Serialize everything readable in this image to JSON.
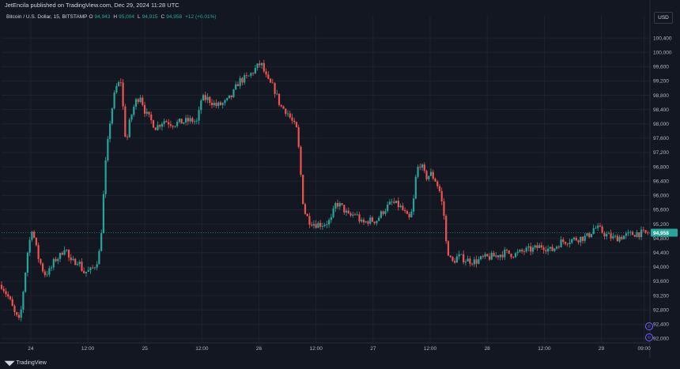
{
  "header": {
    "publisher": "JetEncila published on TradingView.com, Dec 29, 2024 11:28 UTC"
  },
  "legend": {
    "symbol": "Bitcoin / U.S. Dollar, 15, BITSTAMP",
    "o_label": "O",
    "o_value": "94,943",
    "h_label": "H",
    "h_value": "95,004",
    "l_label": "L",
    "l_value": "94,915",
    "c_label": "C",
    "c_value": "94,958",
    "change": "+12 (+0.01%)"
  },
  "currency_button": "USD",
  "footer": {
    "logo_mark": "◥◤",
    "logo_text": "TradingView"
  },
  "colors": {
    "up": "#26a69a",
    "down": "#ef5350",
    "grid": "#1e222d",
    "bg": "#131722",
    "price_badge": "#26a69a"
  },
  "chart_data": {
    "type": "candlestick",
    "instrument": "Bitcoin / U.S. Dollar, 15, BITSTAMP",
    "ylim": [
      91900,
      100800
    ],
    "y_ticks": [
      92000,
      92400,
      92800,
      93200,
      93600,
      94000,
      94400,
      94800,
      95200,
      95600,
      96000,
      96400,
      96800,
      97200,
      97600,
      98000,
      98400,
      98800,
      99200,
      99600,
      100000,
      100400
    ],
    "y_tick_labels": [
      "92,000",
      "92,400",
      "92,800",
      "93,200",
      "93,600",
      "94,000",
      "94,400",
      "94,800",
      "95,200",
      "95,600",
      "96,000",
      "96,400",
      "96,800",
      "97,200",
      "97,600",
      "98,000",
      "98,400",
      "98,800",
      "99,200",
      "99,600",
      "100,000",
      "100,400"
    ],
    "x_ticks": [
      {
        "label": "24",
        "t": 0.045
      },
      {
        "label": "12:00",
        "t": 0.133
      },
      {
        "label": "25",
        "t": 0.221
      },
      {
        "label": "12:00",
        "t": 0.309
      },
      {
        "label": "26",
        "t": 0.397
      },
      {
        "label": "12:00",
        "t": 0.485
      },
      {
        "label": "27",
        "t": 0.573
      },
      {
        "label": "12:00",
        "t": 0.661
      },
      {
        "label": "28",
        "t": 0.749
      },
      {
        "label": "12:00",
        "t": 0.837
      },
      {
        "label": "29",
        "t": 0.925
      },
      {
        "label": "09:00",
        "t": 0.991
      }
    ],
    "last_price": 94958,
    "last_price_label": "94,958",
    "path": [
      [
        0.0,
        93500
      ],
      [
        0.012,
        93100
      ],
      [
        0.02,
        92700
      ],
      [
        0.028,
        92450
      ],
      [
        0.04,
        94400
      ],
      [
        0.047,
        95100
      ],
      [
        0.056,
        94300
      ],
      [
        0.066,
        93800
      ],
      [
        0.075,
        93900
      ],
      [
        0.082,
        94200
      ],
      [
        0.09,
        94300
      ],
      [
        0.098,
        94600
      ],
      [
        0.106,
        94100
      ],
      [
        0.118,
        94200
      ],
      [
        0.126,
        93850
      ],
      [
        0.138,
        93900
      ],
      [
        0.146,
        94100
      ],
      [
        0.152,
        94500
      ],
      [
        0.16,
        96800
      ],
      [
        0.168,
        98200
      ],
      [
        0.176,
        99000
      ],
      [
        0.184,
        99200
      ],
      [
        0.192,
        97400
      ],
      [
        0.198,
        98100
      ],
      [
        0.206,
        98600
      ],
      [
        0.214,
        98800
      ],
      [
        0.222,
        98300
      ],
      [
        0.238,
        97900
      ],
      [
        0.25,
        98100
      ],
      [
        0.264,
        98000
      ],
      [
        0.278,
        98050
      ],
      [
        0.292,
        98100
      ],
      [
        0.302,
        98050
      ],
      [
        0.308,
        98700
      ],
      [
        0.318,
        98700
      ],
      [
        0.332,
        98500
      ],
      [
        0.346,
        98600
      ],
      [
        0.356,
        98800
      ],
      [
        0.366,
        99200
      ],
      [
        0.38,
        99300
      ],
      [
        0.392,
        99550
      ],
      [
        0.4,
        99700
      ],
      [
        0.41,
        99200
      ],
      [
        0.42,
        99000
      ],
      [
        0.43,
        98500
      ],
      [
        0.44,
        98350
      ],
      [
        0.45,
        98000
      ],
      [
        0.456,
        97800
      ],
      [
        0.46,
        96900
      ],
      [
        0.466,
        95600
      ],
      [
        0.474,
        95300
      ],
      [
        0.484,
        95200
      ],
      [
        0.496,
        95200
      ],
      [
        0.508,
        95300
      ],
      [
        0.516,
        95800
      ],
      [
        0.526,
        95650
      ],
      [
        0.536,
        95400
      ],
      [
        0.546,
        95500
      ],
      [
        0.556,
        95200
      ],
      [
        0.566,
        95300
      ],
      [
        0.578,
        95300
      ],
      [
        0.59,
        95600
      ],
      [
        0.602,
        95800
      ],
      [
        0.614,
        95700
      ],
      [
        0.622,
        95500
      ],
      [
        0.628,
        95300
      ],
      [
        0.634,
        95600
      ],
      [
        0.64,
        96700
      ],
      [
        0.646,
        96900
      ],
      [
        0.654,
        96500
      ],
      [
        0.662,
        96600
      ],
      [
        0.67,
        96400
      ],
      [
        0.676,
        96100
      ],
      [
        0.682,
        95500
      ],
      [
        0.686,
        94600
      ],
      [
        0.694,
        94100
      ],
      [
        0.704,
        94300
      ],
      [
        0.716,
        94200
      ],
      [
        0.73,
        94150
      ],
      [
        0.744,
        94250
      ],
      [
        0.76,
        94300
      ],
      [
        0.776,
        94400
      ],
      [
        0.792,
        94350
      ],
      [
        0.806,
        94450
      ],
      [
        0.82,
        94500
      ],
      [
        0.834,
        94600
      ],
      [
        0.848,
        94450
      ],
      [
        0.862,
        94700
      ],
      [
        0.876,
        94750
      ],
      [
        0.89,
        94800
      ],
      [
        0.904,
        94850
      ],
      [
        0.914,
        95100
      ],
      [
        0.922,
        95050
      ],
      [
        0.932,
        94900
      ],
      [
        0.944,
        94800
      ],
      [
        0.956,
        94850
      ],
      [
        0.968,
        94900
      ],
      [
        0.98,
        94950
      ],
      [
        0.992,
        94930
      ],
      [
        1.0,
        94958
      ]
    ]
  }
}
